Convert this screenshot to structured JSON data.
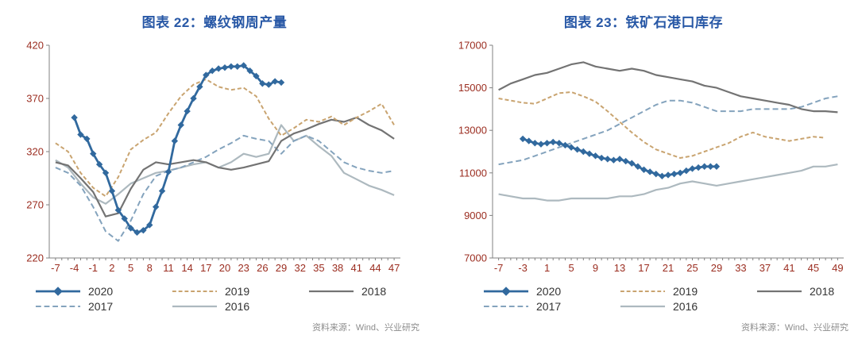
{
  "colors": {
    "title": "#2858a6",
    "axis_labels": "#9b2d20",
    "axis_line": "#808080",
    "source_text": "#8c8c8c",
    "legend_text": "#333333"
  },
  "chart_data": [
    {
      "type": "line",
      "title": "图表 22：螺纹钢周产量",
      "source": "资料来源：Wind、兴业研究",
      "xlabel": "",
      "ylabel": "",
      "xlim": [
        -8,
        48
      ],
      "ylim": [
        220,
        420
      ],
      "yticks": [
        220,
        270,
        320,
        370,
        420
      ],
      "xtick_labels": [
        -7,
        -4,
        -1,
        2,
        5,
        8,
        11,
        14,
        17,
        20,
        23,
        26,
        29,
        32,
        35,
        38,
        41,
        44,
        47
      ],
      "grid": false,
      "legend_position": "bottom",
      "series": [
        {
          "name": "2020",
          "color": "#31699e",
          "dash": "",
          "marker": "diamond",
          "width": 2.8,
          "x_start": -4,
          "x_step": 1,
          "values": [
            352,
            336,
            332,
            318,
            308,
            300,
            283,
            265,
            257,
            248,
            244,
            246,
            251,
            268,
            283,
            301,
            330,
            345,
            358,
            370,
            381,
            392,
            396,
            398,
            399,
            400,
            400,
            401,
            396,
            391,
            384,
            383,
            386,
            385
          ]
        },
        {
          "name": "2019",
          "color": "#c9a470",
          "dash": "5 3",
          "marker": "",
          "width": 2,
          "x_start": -7,
          "x_step": 2,
          "values": [
            328,
            320,
            300,
            286,
            278,
            296,
            322,
            331,
            338,
            356,
            372,
            383,
            388,
            381,
            378,
            380,
            372,
            351,
            335,
            342,
            350,
            348,
            353,
            345,
            352,
            358,
            365,
            345
          ]
        },
        {
          "name": "2018",
          "color": "#737373",
          "dash": "",
          "marker": "",
          "width": 2.2,
          "x_start": -7,
          "x_step": 2,
          "values": [
            310,
            307,
            295,
            282,
            259,
            262,
            285,
            303,
            310,
            308,
            310,
            312,
            310,
            305,
            303,
            305,
            308,
            311,
            330,
            337,
            341,
            346,
            350,
            348,
            352,
            345,
            340,
            332
          ]
        },
        {
          "name": "2017",
          "color": "#84a3bd",
          "dash": "7 4",
          "marker": "",
          "width": 2,
          "x_start": -7,
          "x_step": 2,
          "values": [
            305,
            300,
            288,
            268,
            245,
            236,
            255,
            280,
            297,
            302,
            305,
            310,
            315,
            322,
            328,
            335,
            332,
            330,
            318,
            330,
            335,
            330,
            320,
            310,
            305,
            302,
            300,
            302
          ]
        },
        {
          "name": "2016",
          "color": "#adb9bf",
          "dash": "",
          "marker": "",
          "width": 2.2,
          "x_start": -7,
          "x_step": 2,
          "values": [
            312,
            305,
            290,
            277,
            271,
            280,
            290,
            295,
            300,
            302,
            305,
            308,
            310,
            305,
            310,
            318,
            315,
            318,
            345,
            330,
            335,
            325,
            316,
            300,
            294,
            288,
            284,
            279
          ]
        }
      ]
    },
    {
      "type": "line",
      "title": "图表 23：铁矿石港口库存",
      "source": "资料来源：Wind、兴业研究",
      "xlabel": "",
      "ylabel": "",
      "xlim": [
        -8,
        50
      ],
      "ylim": [
        7000,
        17000
      ],
      "yticks": [
        7000,
        9000,
        11000,
        13000,
        15000,
        17000
      ],
      "xtick_labels": [
        -7,
        -3,
        1,
        5,
        9,
        13,
        17,
        21,
        25,
        29,
        33,
        37,
        41,
        45,
        49
      ],
      "grid": false,
      "legend_position": "bottom",
      "series": [
        {
          "name": "2020",
          "color": "#31699e",
          "dash": "",
          "marker": "diamond",
          "width": 2.8,
          "x_start": -3,
          "x_step": 1,
          "values": [
            12600,
            12500,
            12400,
            12350,
            12400,
            12450,
            12400,
            12300,
            12200,
            12100,
            12000,
            11900,
            11800,
            11700,
            11650,
            11600,
            11650,
            11550,
            11450,
            11300,
            11150,
            11050,
            10950,
            10850,
            10900,
            10950,
            11000,
            11100,
            11200,
            11250,
            11300,
            11300,
            11300
          ]
        },
        {
          "name": "2019",
          "color": "#c9a470",
          "dash": "5 3",
          "marker": "",
          "width": 2,
          "x_start": -7,
          "x_step": 2,
          "values": [
            14500,
            14400,
            14300,
            14250,
            14500,
            14750,
            14800,
            14600,
            14350,
            13900,
            13400,
            12900,
            12450,
            12100,
            11900,
            11700,
            11800,
            12000,
            12200,
            12400,
            12700,
            12900,
            12700,
            12600,
            12500,
            12600,
            12700,
            12650
          ]
        },
        {
          "name": "2018",
          "color": "#737373",
          "dash": "",
          "marker": "",
          "width": 2.2,
          "x_start": -7,
          "x_step": 2,
          "values": [
            14900,
            15200,
            15400,
            15600,
            15700,
            15900,
            16100,
            16200,
            16000,
            15900,
            15800,
            15900,
            15800,
            15600,
            15500,
            15400,
            15300,
            15100,
            15000,
            14800,
            14600,
            14500,
            14400,
            14300,
            14200,
            14000,
            13900,
            13900,
            13850
          ]
        },
        {
          "name": "2017",
          "color": "#84a3bd",
          "dash": "7 4",
          "marker": "",
          "width": 2,
          "x_start": -7,
          "x_step": 2,
          "values": [
            11400,
            11500,
            11600,
            11800,
            12000,
            12200,
            12400,
            12600,
            12800,
            13000,
            13300,
            13600,
            13900,
            14200,
            14400,
            14400,
            14300,
            14100,
            13900,
            13900,
            13900,
            14000,
            14000,
            14000,
            14000,
            14100,
            14300,
            14500,
            14600
          ]
        },
        {
          "name": "2016",
          "color": "#adb9bf",
          "dash": "",
          "marker": "",
          "width": 2.2,
          "x_start": -7,
          "x_step": 2,
          "values": [
            10000,
            9900,
            9800,
            9800,
            9700,
            9700,
            9800,
            9800,
            9800,
            9800,
            9900,
            9900,
            10000,
            10200,
            10300,
            10500,
            10600,
            10500,
            10400,
            10500,
            10600,
            10700,
            10800,
            10900,
            11000,
            11100,
            11300,
            11300,
            11400
          ]
        }
      ]
    }
  ]
}
